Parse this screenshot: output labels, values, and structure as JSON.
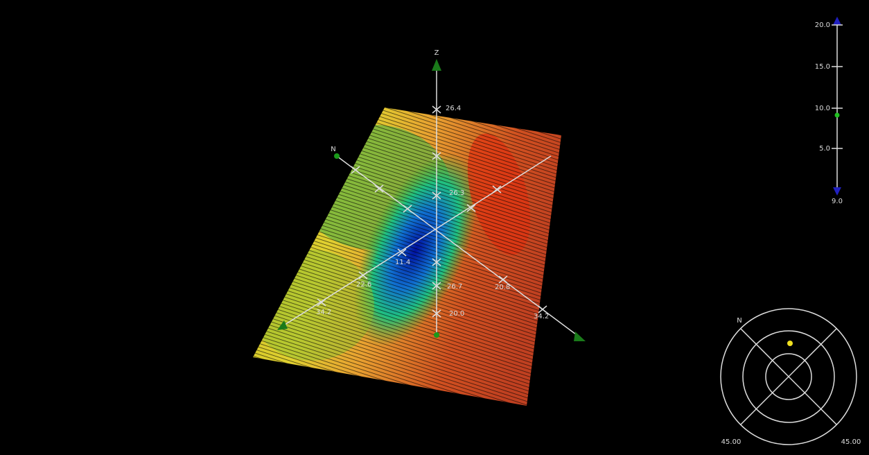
{
  "viewport": {
    "axes": {
      "z_label": "Z",
      "n_label": "N",
      "tick_labels": [
        "26.4",
        "26.3",
        "11.4",
        "22.6",
        "34.2",
        "26.7",
        "20.0",
        "20.8",
        "34.2"
      ]
    }
  },
  "scale_bar": {
    "ticks": [
      "20.0",
      "15.0",
      "10.0",
      "5.0"
    ],
    "bottom_label": "9.0"
  },
  "compass": {
    "north_label": "N",
    "left_label": "45.00",
    "right_label": "45.00"
  }
}
